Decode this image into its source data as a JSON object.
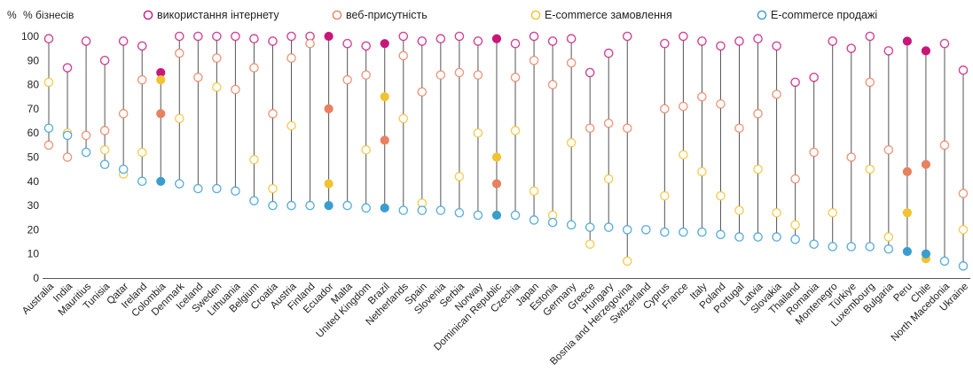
{
  "chart_data": {
    "type": "scatter",
    "ylabel": "%",
    "y_unit_label": "% бізнесів",
    "ylim": [
      0,
      100
    ],
    "yticks": [
      0,
      10,
      20,
      30,
      40,
      50,
      60,
      70,
      80,
      90,
      100
    ],
    "grid": false,
    "legend_position": "top",
    "categories": [
      "Australia",
      "India",
      "Mauritius",
      "Tunisia",
      "Qatar",
      "Ireland",
      "Colombia",
      "Denmark",
      "Iceland",
      "Sweden",
      "Lithuania",
      "Belgium",
      "Croatia",
      "Austria",
      "Finland",
      "Ecuador",
      "Malta",
      "United Kingdom",
      "Brazil",
      "Netherlands",
      "Spain",
      "Slovenia",
      "Serbia",
      "Norway",
      "Dominican Republic",
      "Czechia",
      "Japan",
      "Estonia",
      "Germany",
      "Greece",
      "Hungary",
      "Bosnia and Herzegovina",
      "Switzerland",
      "Cyprus",
      "France",
      "Italy",
      "Poland",
      "Portugal",
      "Latvia",
      "Slovakia",
      "Thailand",
      "Romania",
      "Montenegro",
      "Türkiye",
      "Luxembourg",
      "Bulgaria",
      "Peru",
      "Chile",
      "North Macedonia",
      "Ukraine"
    ],
    "highlighted": [
      "Colombia",
      "Ecuador",
      "Brazil",
      "Dominican Republic",
      "Peru",
      "Chile"
    ],
    "series": [
      {
        "name": "використання інтернету",
        "color": "#c8177a",
        "values": [
          99,
          87,
          98,
          90,
          98,
          96,
          85,
          100,
          100,
          100,
          100,
          99,
          98,
          100,
          100,
          100,
          97,
          96,
          97,
          100,
          98,
          99,
          100,
          98,
          99,
          97,
          100,
          98,
          99,
          85,
          93,
          100,
          null,
          97,
          100,
          98,
          96,
          98,
          99,
          96,
          81,
          83,
          98,
          95,
          100,
          94,
          98,
          94,
          97,
          86
        ]
      },
      {
        "name": "веб-присутність",
        "color": "#e8815f",
        "values": [
          55,
          50,
          59,
          61,
          68,
          82,
          68,
          93,
          83,
          91,
          78,
          87,
          68,
          91,
          97,
          70,
          82,
          84,
          57,
          92,
          77,
          84,
          85,
          84,
          39,
          83,
          90,
          80,
          89,
          62,
          64,
          62,
          null,
          70,
          71,
          75,
          72,
          62,
          68,
          76,
          41,
          52,
          null,
          50,
          81,
          53,
          44,
          47,
          55,
          35
        ]
      },
      {
        "name": "E-commerce замовлення",
        "color": "#f2c230",
        "values": [
          81,
          60,
          null,
          53,
          43,
          52,
          82,
          66,
          null,
          79,
          null,
          49,
          37,
          63,
          null,
          39,
          null,
          53,
          75,
          66,
          31,
          null,
          42,
          60,
          50,
          61,
          36,
          26,
          56,
          14,
          41,
          7,
          null,
          34,
          51,
          44,
          34,
          28,
          45,
          27,
          22,
          null,
          27,
          null,
          45,
          17,
          27,
          8,
          null,
          20
        ]
      },
      {
        "name": "E-commerce продажі",
        "color": "#3a9dd0",
        "values": [
          62,
          59,
          52,
          47,
          45,
          40,
          40,
          39,
          37,
          37,
          36,
          32,
          30,
          30,
          30,
          30,
          30,
          29,
          29,
          28,
          28,
          28,
          27,
          26,
          26,
          26,
          24,
          23,
          22,
          21,
          21,
          20,
          20,
          19,
          19,
          19,
          18,
          17,
          17,
          17,
          16,
          14,
          13,
          13,
          13,
          12,
          11,
          10,
          7,
          5
        ]
      }
    ]
  }
}
